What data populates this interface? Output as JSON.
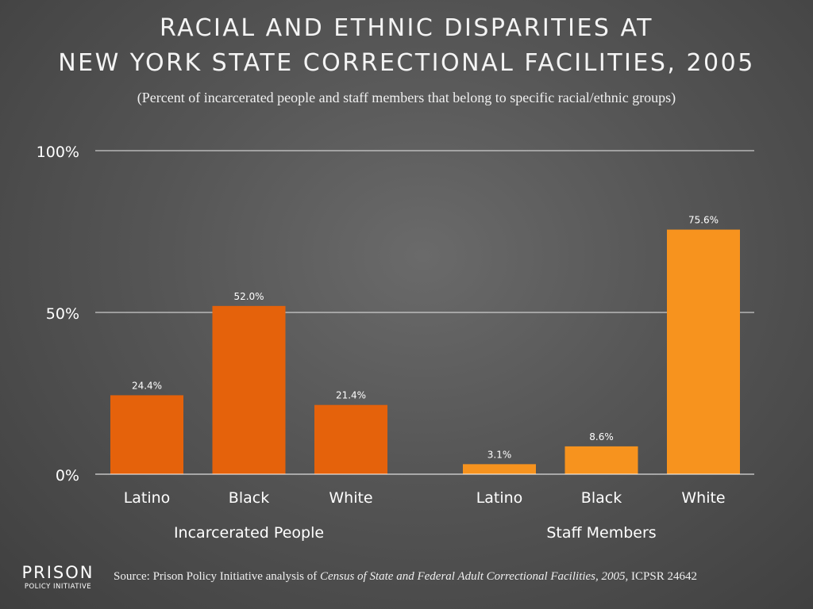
{
  "title_line1": "RACIAL AND ETHNIC DISPARITIES AT",
  "title_line2": "NEW YORK STATE CORRECTIONAL FACILITIES, 2005",
  "subtitle": "(Percent of incarcerated people and staff members that belong to specific racial/ethnic groups)",
  "logo": {
    "line1": "PRISON",
    "line2": "POLICY INITIATIVE"
  },
  "source": {
    "prefix": "Source: Prison Policy Initiative analysis of ",
    "italic": "Census of State and Federal Adult Correctional Facilities, 2005",
    "suffix": ", ICPSR 24642"
  },
  "chart_data": {
    "type": "bar",
    "ylim": [
      0,
      100
    ],
    "yticks": [
      "0%",
      "50%",
      "100%"
    ],
    "ytick_values": [
      0,
      50,
      100
    ],
    "grid": true,
    "groups": [
      {
        "name": "Incarcerated People",
        "color": "#e5620b",
        "categories": [
          "Latino",
          "Black",
          "White"
        ],
        "values": [
          24.4,
          52.0,
          21.4
        ],
        "labels": [
          "24.4%",
          "52.0%",
          "21.4%"
        ]
      },
      {
        "name": "Staff Members",
        "color": "#f7931e",
        "categories": [
          "Latino",
          "Black",
          "White"
        ],
        "values": [
          3.1,
          8.6,
          75.6
        ],
        "labels": [
          "3.1%",
          "8.6%",
          "75.6%"
        ]
      }
    ]
  }
}
